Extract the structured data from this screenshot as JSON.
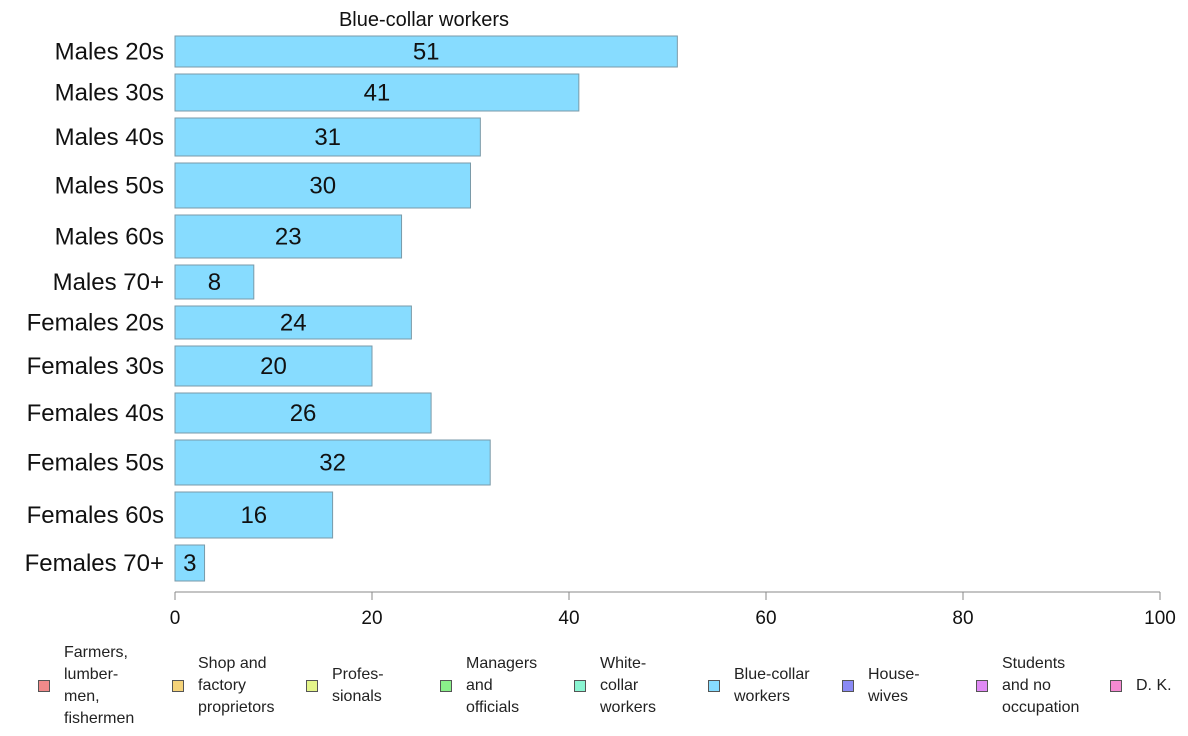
{
  "chart_data": {
    "type": "bar",
    "orientation": "horizontal",
    "title": "Blue-collar workers",
    "categories": [
      "Males 20s",
      "Males 30s",
      "Males 40s",
      "Males 50s",
      "Males 60s",
      "Males 70+",
      "Females 20s",
      "Females 30s",
      "Females 40s",
      "Females 50s",
      "Females 60s",
      "Females 70+"
    ],
    "values": [
      51,
      41,
      31,
      30,
      23,
      8,
      24,
      20,
      26,
      32,
      16,
      3
    ],
    "value_labels": [
      "51",
      "41",
      "31",
      "30",
      "23",
      "8",
      "24",
      "20",
      "26",
      "32",
      "16",
      "3"
    ],
    "bar_color": "#87dcff",
    "bar_stroke": "#7a9aa8",
    "xlim": [
      0,
      100
    ],
    "xticks": [
      0,
      20,
      40,
      60,
      80,
      100
    ],
    "xtick_labels": [
      "0",
      "20",
      "40",
      "60",
      "80",
      "100"
    ],
    "xlabel": "",
    "ylabel": "",
    "grid": false,
    "legend_position": "bottom",
    "legend": [
      {
        "label": "Farmers,\nlumber-\nmen,\nfishermen",
        "color": "#f08a8a"
      },
      {
        "label": "Shop and\nfactory\nproprietors",
        "color": "#f5d37a"
      },
      {
        "label": "Profes-\nsionals",
        "color": "#e4f58a"
      },
      {
        "label": "Managers\nand\nofficials",
        "color": "#8af08a"
      },
      {
        "label": "White-\ncollar\nworkers",
        "color": "#8af5d2"
      },
      {
        "label": "Blue-collar\nworkers",
        "color": "#87dcff"
      },
      {
        "label": "House-\nwives",
        "color": "#8a8af5"
      },
      {
        "label": "Students\nand no\noccupation",
        "color": "#e08af5"
      },
      {
        "label": "D. K.",
        "color": "#f58ad2"
      }
    ]
  }
}
